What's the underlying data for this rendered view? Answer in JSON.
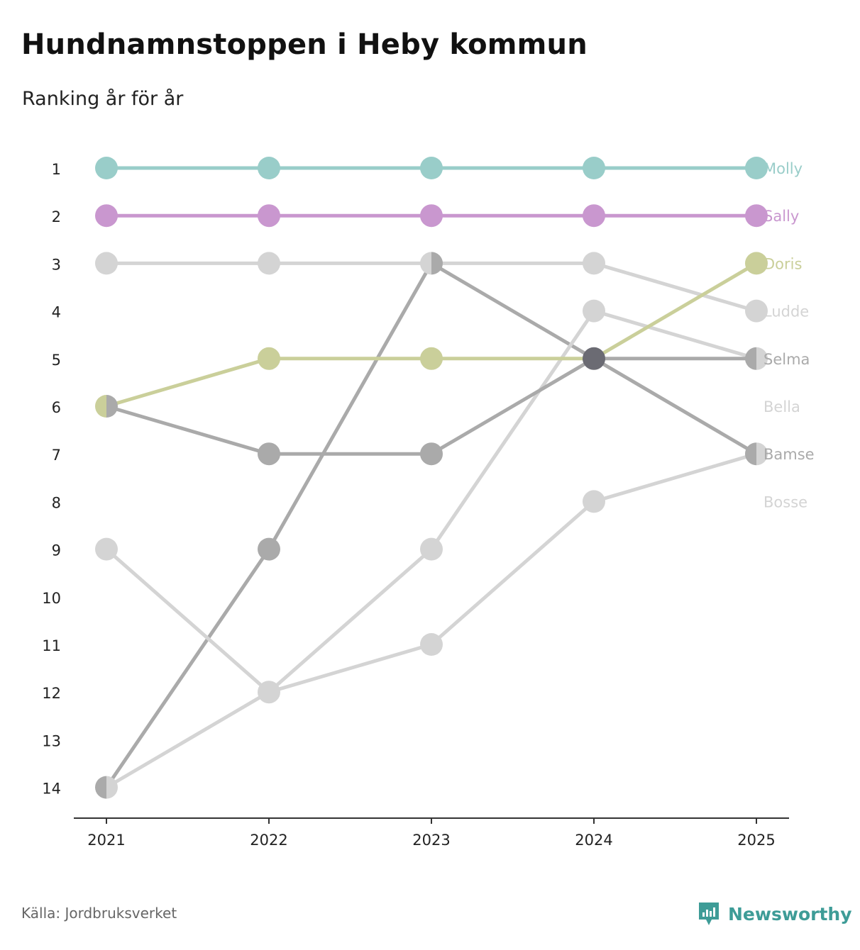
{
  "title": "Hundnamnstoppen i Heby kommun",
  "subtitle": "Ranking år för år",
  "source": "Källa: Jordbruksverket",
  "brand": {
    "name": "Newsworthy",
    "icon": "newsworthy-logo-icon",
    "color": "#3e9c97"
  },
  "chart_data": {
    "type": "line",
    "chart_kind": "bump",
    "title": "Hundnamnstoppen i Heby kommun",
    "subtitle": "Ranking år för år",
    "x": [
      "2021",
      "2022",
      "2023",
      "2024",
      "2025"
    ],
    "y_ticks": [
      1,
      2,
      3,
      4,
      5,
      6,
      7,
      8,
      9,
      10,
      11,
      12,
      13,
      14
    ],
    "ylim": [
      1,
      14
    ],
    "y_inverted": true,
    "series": [
      {
        "name": "Molly",
        "values": [
          1,
          1,
          1,
          1,
          1
        ],
        "color": "#99cdc9"
      },
      {
        "name": "Sally",
        "values": [
          2,
          2,
          2,
          2,
          2
        ],
        "color": "#c997cf"
      },
      {
        "name": "Doris",
        "values": [
          6,
          5,
          5,
          5,
          3
        ],
        "color": "#cacf9a"
      },
      {
        "name": "Ludde",
        "values": [
          3,
          3,
          3,
          3,
          4
        ],
        "color": "#d4d4d4"
      },
      {
        "name": "Selma",
        "values": [
          6,
          7,
          7,
          5,
          5
        ],
        "color": "#aaaaaa"
      },
      {
        "name": "Bella",
        "values": [
          9,
          12,
          9,
          4,
          5
        ],
        "color": "#d4d4d4"
      },
      {
        "name": "Bamse",
        "values": [
          14,
          9,
          3,
          5,
          7
        ],
        "color": "#aaaaaa"
      },
      {
        "name": "Bosse",
        "values": [
          14,
          12,
          11,
          8,
          7
        ],
        "color": "#d4d4d4"
      }
    ],
    "shared_point_color": "#6b6b73"
  }
}
